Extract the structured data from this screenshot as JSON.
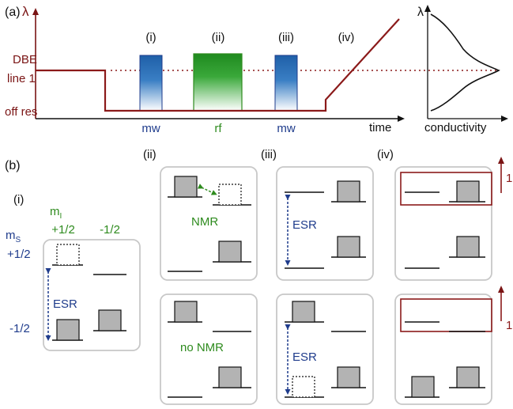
{
  "colors": {
    "axis": "#7a1414",
    "trace": "#8b1a1a",
    "black": "#111111",
    "blue": "#1f3c8c",
    "green": "#2e8b1e",
    "box_fill": "#b3b3b3",
    "panel_border": "#c8c8c8"
  },
  "part_a": {
    "label": "(a)",
    "lambda": "λ",
    "dbe_line1": "DBE",
    "dbe_line2": "line 1",
    "off_res": "off res",
    "time": "time",
    "pulses": [
      {
        "roman": "(i)",
        "name": "mw"
      },
      {
        "roman": "(ii)",
        "name": "rf"
      },
      {
        "roman": "(iii)",
        "name": "mw"
      },
      {
        "roman": "(iv)",
        "name": ""
      }
    ],
    "conductivity_lambda": "λ",
    "conductivity_label": "conductivity"
  },
  "part_b": {
    "label": "(b)",
    "i": {
      "label": "(i)",
      "mi_label": "m",
      "mi_sub": "I",
      "mi_plus": "+1/2",
      "mi_minus": "-1/2",
      "ms_label": "m",
      "ms_sub": "S",
      "ms_plus": "+1/2",
      "ms_minus": "-1/2",
      "esr": "ESR"
    },
    "ii": {
      "label": "(ii)",
      "top": "NMR",
      "bottom": "no NMR"
    },
    "iii": {
      "label": "(iii)",
      "top": "ESR",
      "bottom": "ESR"
    },
    "iv": {
      "label": "(iv)",
      "top_arrow": "1",
      "bottom_arrow": "1"
    }
  }
}
